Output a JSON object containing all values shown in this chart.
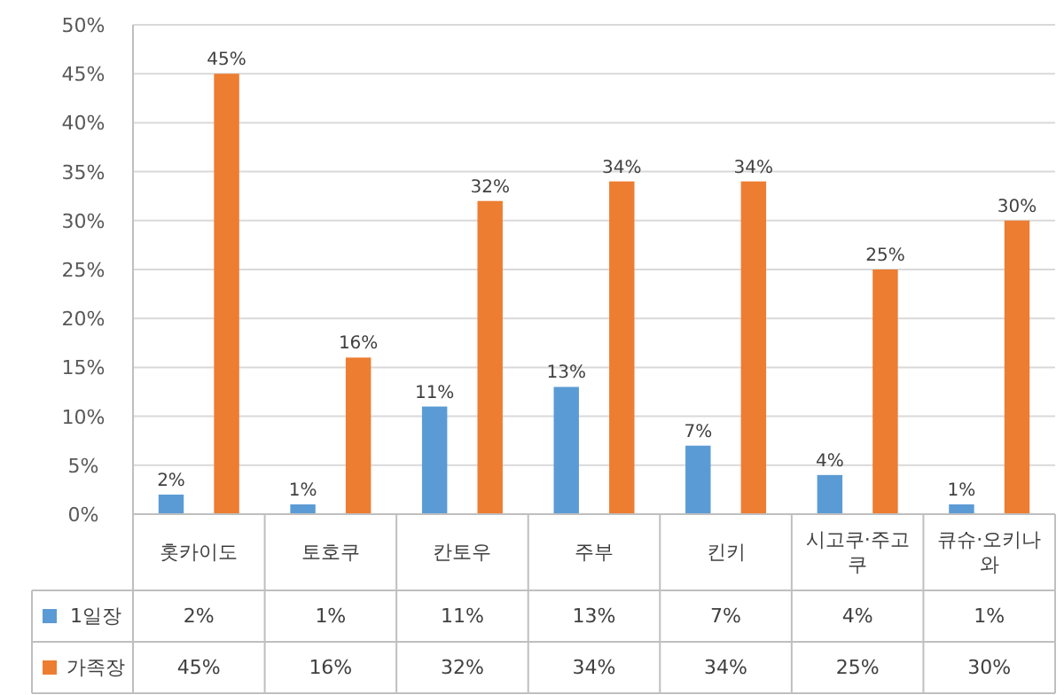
{
  "chart_data": {
    "type": "bar",
    "categories": [
      "홋카이도",
      "토호쿠",
      "칸토우",
      "주부",
      "킨키",
      "시고쿠·주고쿠",
      "큐슈·오키나와"
    ],
    "series": [
      {
        "name": "1일장",
        "color": "#5b9bd5",
        "values": [
          2,
          1,
          11,
          13,
          7,
          4,
          1
        ],
        "value_labels": [
          "2%",
          "1%",
          "11%",
          "13%",
          "7%",
          "4%",
          "1%"
        ]
      },
      {
        "name": "가족장",
        "color": "#ed7d31",
        "values": [
          45,
          16,
          32,
          34,
          34,
          25,
          30
        ],
        "value_labels": [
          "45%",
          "16%",
          "32%",
          "34%",
          "34%",
          "25%",
          "30%"
        ]
      }
    ],
    "ylim": [
      0,
      50
    ],
    "yticks": [
      {
        "value": 0,
        "label": "0%"
      },
      {
        "value": 5,
        "label": "5%"
      },
      {
        "value": 10,
        "label": "10%"
      },
      {
        "value": 15,
        "label": "15%"
      },
      {
        "value": 20,
        "label": "20%"
      },
      {
        "value": 25,
        "label": "25%"
      },
      {
        "value": 30,
        "label": "30%"
      },
      {
        "value": 35,
        "label": "35%"
      },
      {
        "value": 40,
        "label": "40%"
      },
      {
        "value": 45,
        "label": "45%"
      },
      {
        "value": 50,
        "label": "50%"
      }
    ],
    "grid": "y",
    "legend": "bottom"
  }
}
